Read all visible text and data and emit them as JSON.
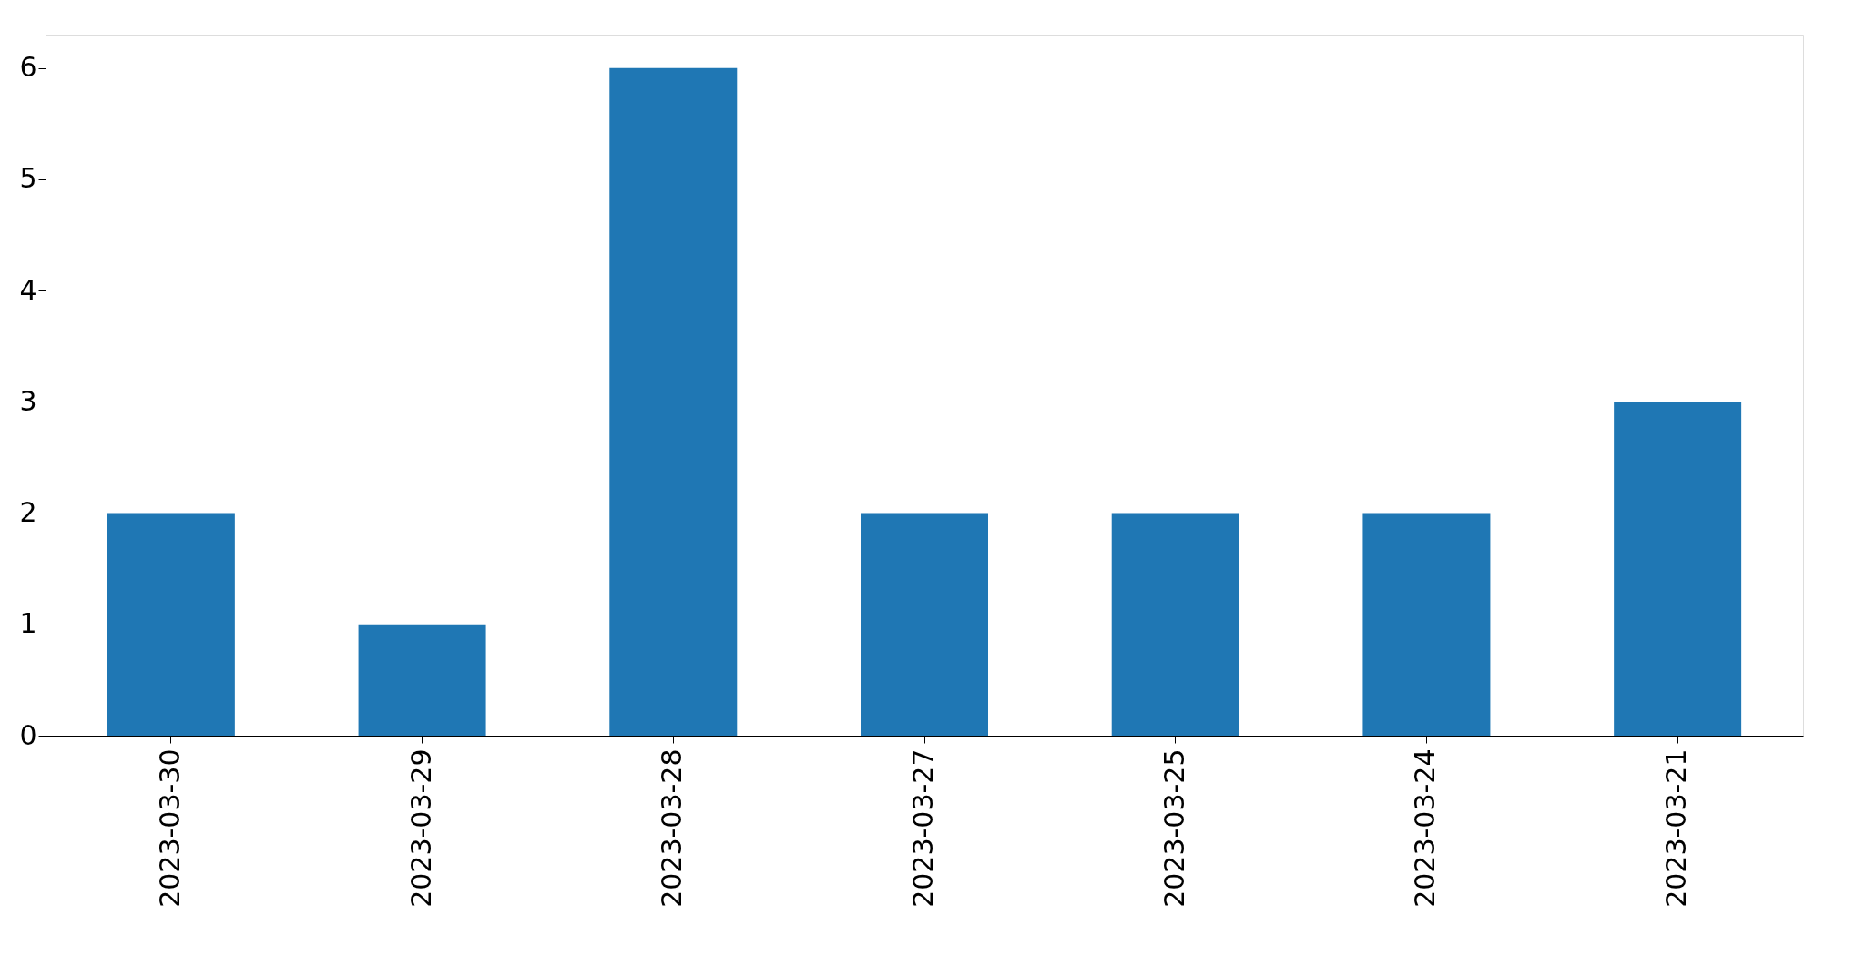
{
  "chart_data": {
    "type": "bar",
    "categories": [
      "2023-03-30",
      "2023-03-29",
      "2023-03-28",
      "2023-03-27",
      "2023-03-25",
      "2023-03-24",
      "2023-03-21"
    ],
    "values": [
      2,
      1,
      6,
      2,
      2,
      2,
      3
    ],
    "color": "#1f77b4",
    "ylim": [
      0,
      6.3
    ],
    "yticks": [
      0,
      1,
      2,
      3,
      4,
      5,
      6
    ],
    "grid": false
  }
}
